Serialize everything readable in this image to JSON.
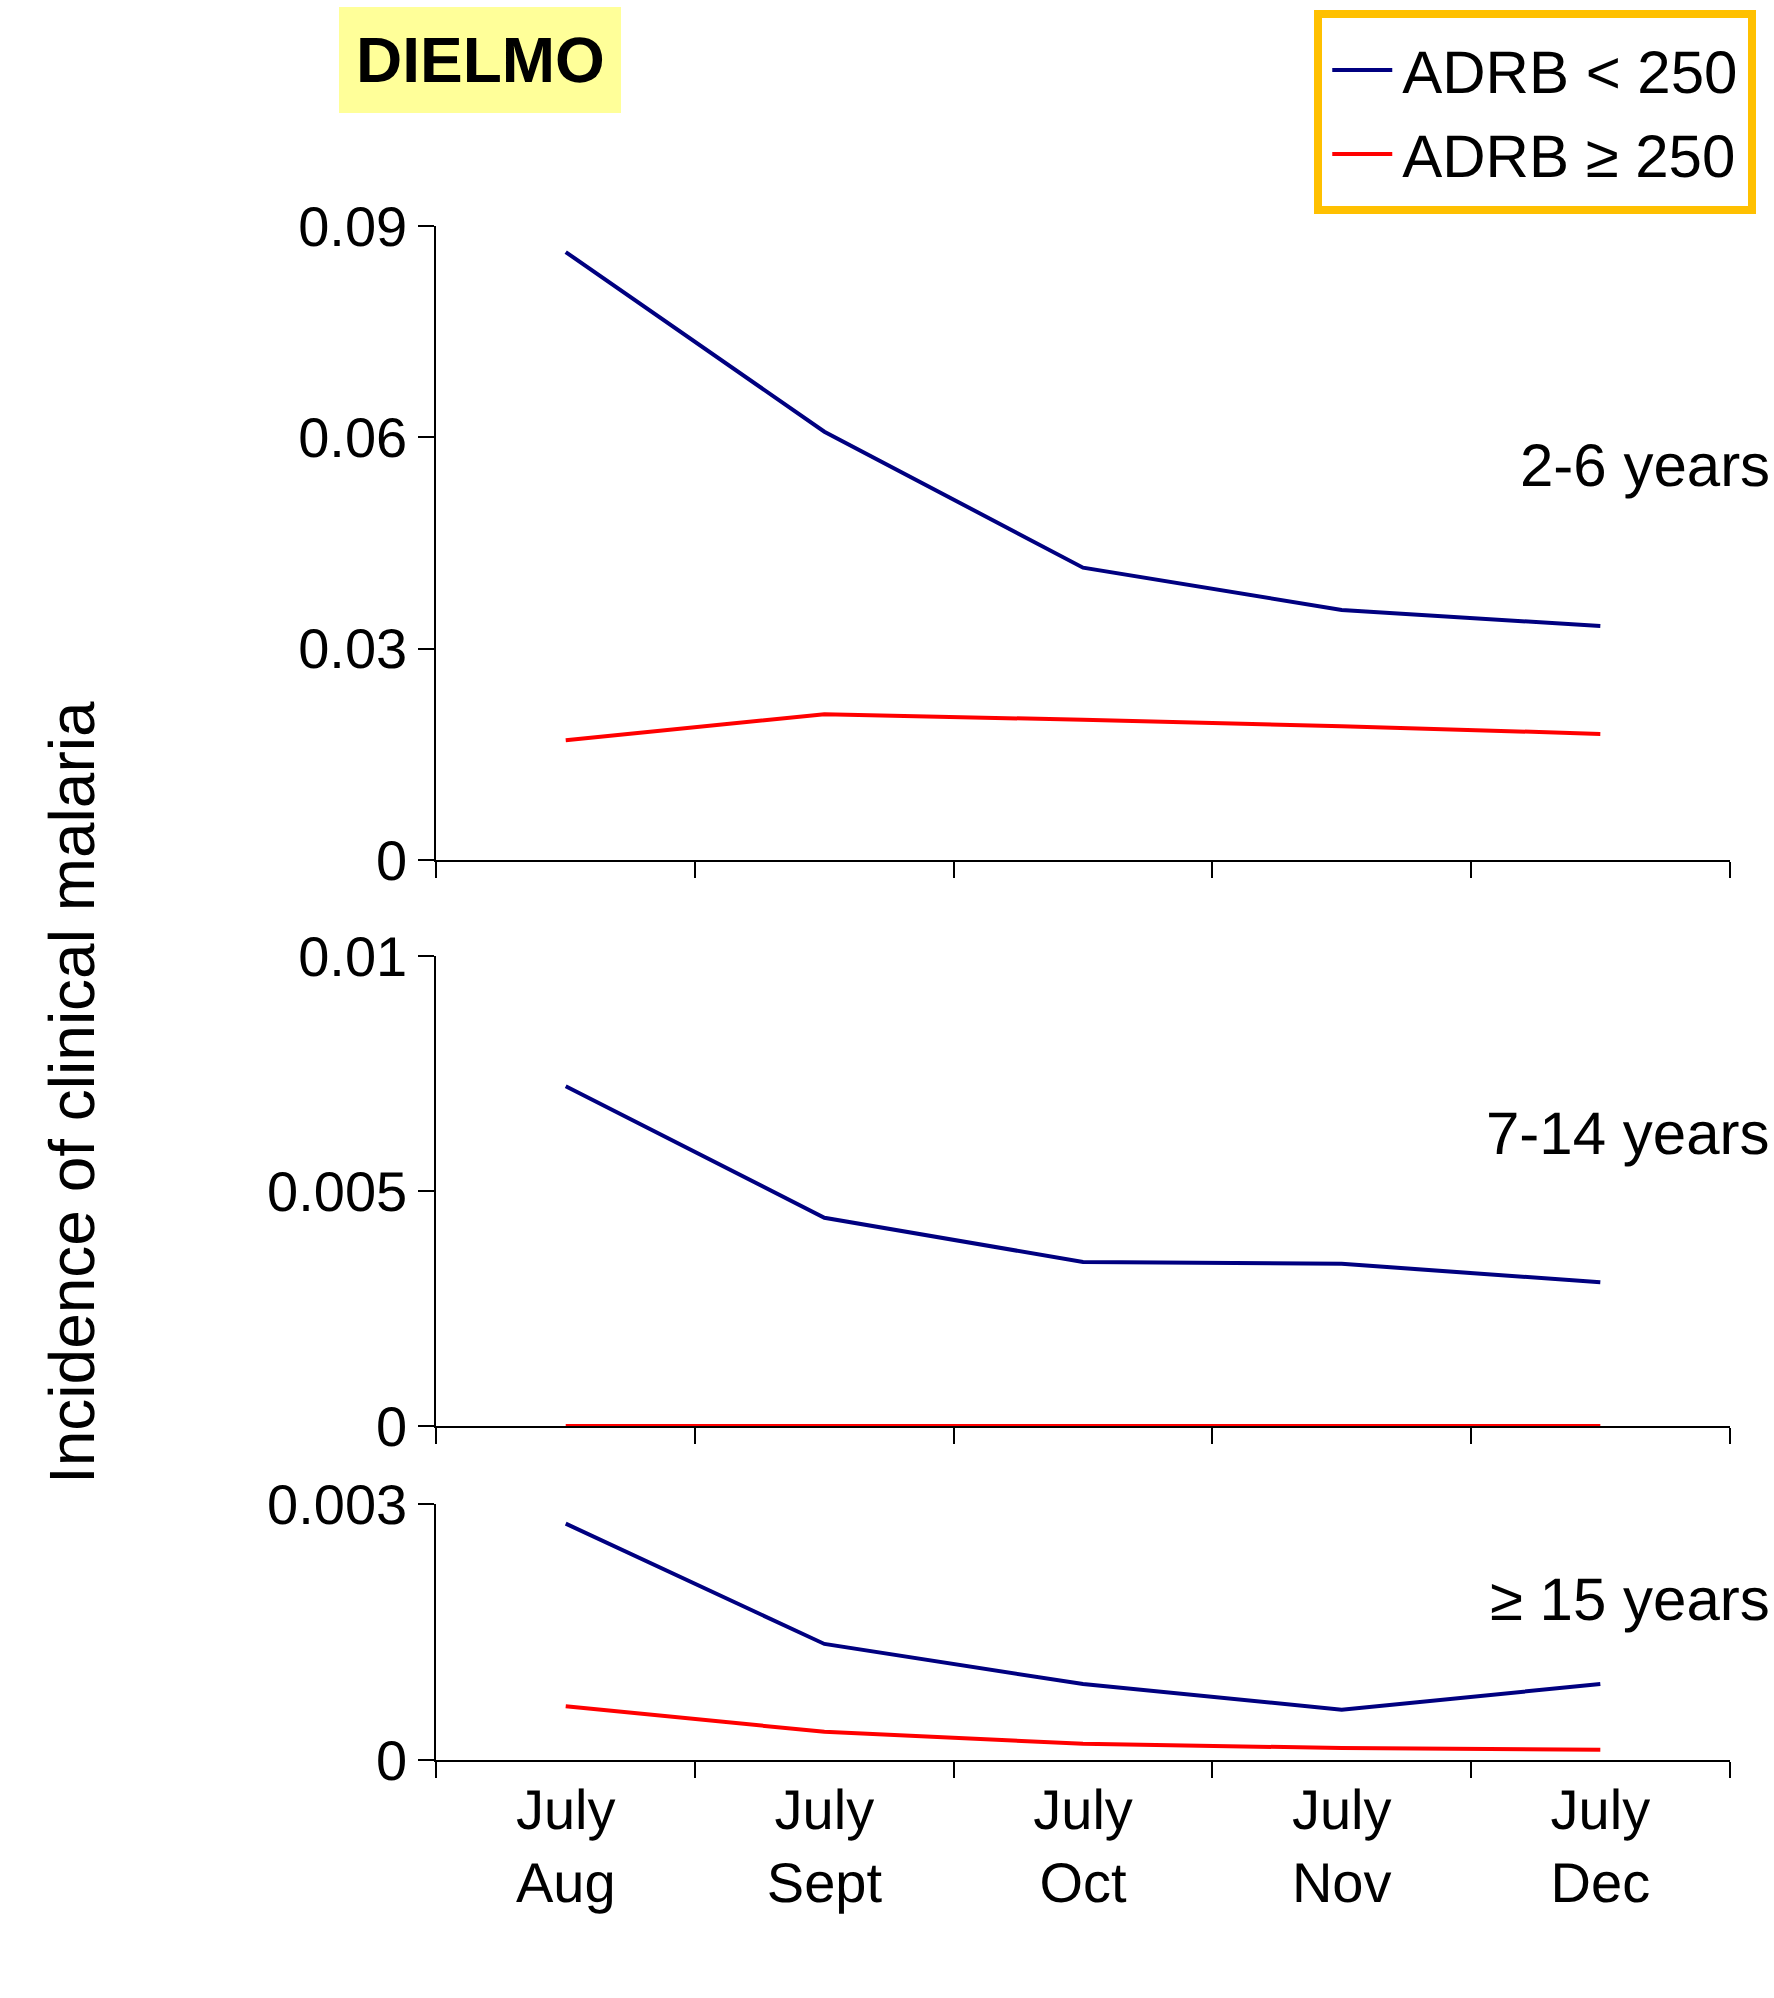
{
  "chart_data": [
    {
      "type": "line",
      "title": "DIELMO",
      "categories": [
        null,
        null,
        null,
        null,
        null
      ],
      "ylim": [
        0,
        0.09
      ],
      "yticks": [
        0,
        0.03,
        0.06,
        0.09
      ],
      "tick_labels": "y",
      "legend": "top right",
      "marker": "none",
      "line_style": "solid",
      "annotations": [
        "2-6 years"
      ],
      "series": [
        {
          "name": "ADRB < 250",
          "color": "#000080",
          "values": [
            0.0863,
            0.0608,
            0.0415,
            0.0355,
            0.0332
          ]
        },
        {
          "name": "ADRB ≥ 250",
          "color": "#ff0000",
          "values": [
            0.017,
            0.0207,
            0.0199,
            0.019,
            0.0179
          ]
        }
      ]
    },
    {
      "type": "line",
      "ylabel": "Incidence of clinical malaria",
      "categories": [
        null,
        null,
        null,
        null,
        null
      ],
      "ylim": [
        0,
        0.01
      ],
      "yticks": [
        0,
        0.005,
        0.01
      ],
      "tick_labels": "y",
      "marker": "none",
      "line_style": "solid",
      "annotations": [
        "7-14 years"
      ],
      "series": [
        {
          "color": "#000080",
          "values": [
            0.00723,
            0.00443,
            0.00349,
            0.00345,
            0.00306
          ]
        },
        {
          "color": "#ff0000",
          "values": [
            0,
            0,
            0,
            0,
            0
          ]
        }
      ]
    },
    {
      "type": "line",
      "categories": [
        "July\nAug",
        "July\nSept",
        "July\nOct",
        "July\nNov",
        "July\nDec"
      ],
      "ylim": [
        0,
        0.003
      ],
      "yticks": [
        0,
        0.003
      ],
      "marker": "none",
      "line_style": "solid",
      "annotations": [
        "≥ 15 years"
      ],
      "series": [
        {
          "color": "#000080",
          "values": [
            0.00277,
            0.00136,
            0.00089,
            0.00059,
            0.00089
          ]
        },
        {
          "color": "#ff0000",
          "values": [
            0.00063,
            0.00033,
            0.00019,
            0.00014,
            0.00012
          ]
        }
      ]
    }
  ]
}
